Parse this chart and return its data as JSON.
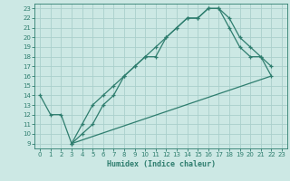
{
  "xlabel": "Humidex (Indice chaleur)",
  "bg_color": "#cce8e4",
  "line_color": "#2e7d6e",
  "grid_color": "#aacfcc",
  "xlim": [
    -0.5,
    23.5
  ],
  "ylim": [
    8.5,
    23.5
  ],
  "xticks": [
    0,
    1,
    2,
    3,
    4,
    5,
    6,
    7,
    8,
    9,
    10,
    11,
    12,
    13,
    14,
    15,
    16,
    17,
    18,
    19,
    20,
    21,
    22,
    23
  ],
  "yticks": [
    9,
    10,
    11,
    12,
    13,
    14,
    15,
    16,
    17,
    18,
    19,
    20,
    21,
    22,
    23
  ],
  "curve1_x": [
    0,
    1,
    2,
    3,
    4,
    5,
    6,
    7,
    8,
    9,
    10,
    11,
    12,
    13,
    14,
    15,
    16,
    17,
    18,
    19,
    20,
    21,
    22
  ],
  "curve1_y": [
    14,
    12,
    12,
    9,
    10,
    11,
    13,
    14,
    16,
    17,
    18,
    18,
    20,
    21,
    22,
    22,
    23,
    23,
    21,
    19,
    18,
    18,
    17
  ],
  "curve2_x": [
    3,
    4,
    5,
    6,
    7,
    8,
    9,
    10,
    11,
    12,
    13,
    14,
    15,
    16,
    17,
    18,
    19,
    20,
    21,
    22
  ],
  "curve2_y": [
    9,
    11,
    13,
    14,
    15,
    16,
    17,
    18,
    19,
    20,
    21,
    22,
    22,
    23,
    23,
    22,
    20,
    19,
    18,
    16
  ],
  "curve3_x": [
    3,
    22
  ],
  "curve3_y": [
    9,
    16
  ]
}
